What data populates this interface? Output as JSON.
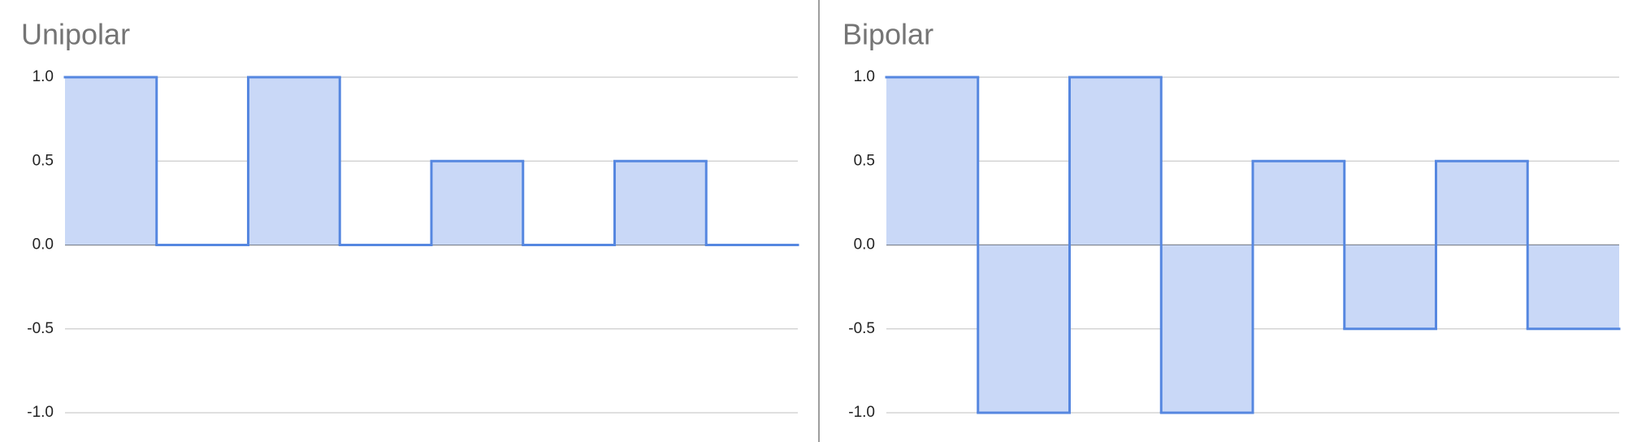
{
  "chart_data": [
    {
      "type": "step-area",
      "title": "Unipolar",
      "categories": [
        null,
        null,
        null,
        null,
        null,
        null,
        null,
        null
      ],
      "values": [
        1,
        0,
        1,
        0,
        0.5,
        0,
        0.5,
        0
      ],
      "color": "#5687e0",
      "fill": "#c9d8f7",
      "ylim": [
        -1,
        1
      ],
      "yticks": [
        {
          "value": -1,
          "label": "-1.0"
        },
        {
          "value": -0.5,
          "label": "-0.5"
        },
        {
          "value": 0,
          "label": "0.0"
        },
        {
          "value": 0.5,
          "label": "0.5"
        },
        {
          "value": 1,
          "label": "1.0"
        }
      ],
      "grid": true
    },
    {
      "type": "step-area",
      "title": "Bipolar",
      "categories": [
        null,
        null,
        null,
        null,
        null,
        null,
        null,
        null
      ],
      "values": [
        1,
        -1,
        1,
        -1,
        0.5,
        -0.5,
        0.5,
        -0.5
      ],
      "color": "#5687e0",
      "fill": "#c9d8f7",
      "ylim": [
        -1,
        1
      ],
      "yticks": [
        {
          "value": -1,
          "label": "-1.0"
        },
        {
          "value": -0.5,
          "label": "-0.5"
        },
        {
          "value": 0,
          "label": "0.0"
        },
        {
          "value": 0.5,
          "label": "0.5"
        },
        {
          "value": 1,
          "label": "1.0"
        }
      ],
      "grid": true
    }
  ]
}
